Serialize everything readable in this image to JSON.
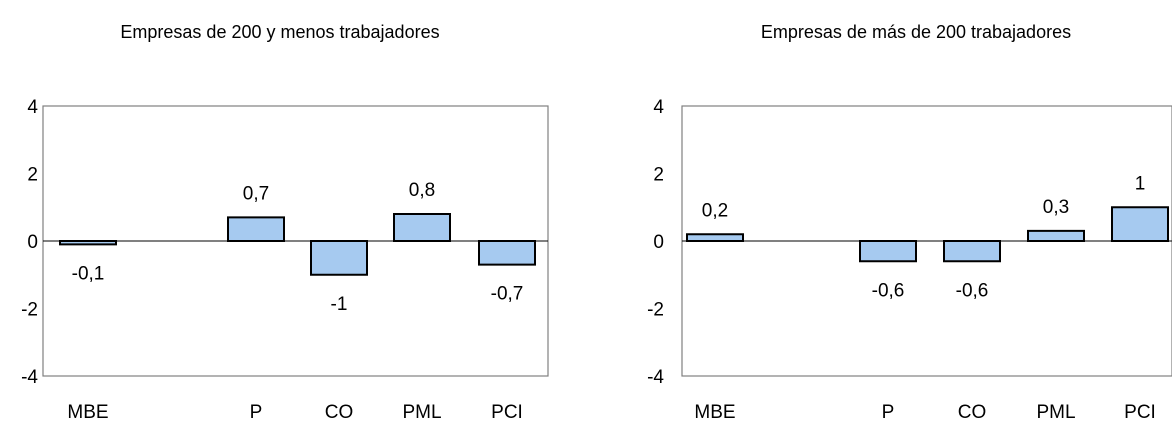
{
  "chart_data": [
    {
      "type": "bar",
      "title": "Empresas de 200 y menos trabajadores",
      "categories": [
        "MBE",
        "",
        "P",
        "CO",
        "PML",
        "PCI"
      ],
      "values": [
        -0.1,
        null,
        0.7,
        -1,
        0.8,
        -0.7
      ],
      "value_labels": [
        "-0,1",
        "",
        "0,7",
        "-1",
        "0,8",
        "-0,7"
      ],
      "ylim": [
        -4,
        4
      ],
      "yticks": [
        4,
        2,
        0,
        -2,
        -4
      ],
      "ytick_labels": [
        "4",
        "2",
        "0",
        "-2",
        "-4"
      ],
      "grid": false,
      "bar_color": "#a6caf0"
    },
    {
      "type": "bar",
      "title": "Empresas de más de 200 trabajadores",
      "categories": [
        "MBE",
        "",
        "P",
        "CO",
        "PML",
        "PCI"
      ],
      "values": [
        0.2,
        null,
        -0.6,
        -0.6,
        0.3,
        1
      ],
      "value_labels": [
        "0,2",
        "",
        "-0,6",
        "-0,6",
        "0,3",
        "1"
      ],
      "ylim": [
        -4,
        4
      ],
      "yticks": [
        4,
        2,
        0,
        -2,
        -4
      ],
      "ytick_labels": [
        "4",
        "2",
        "0",
        "-2",
        "-4"
      ],
      "grid": false,
      "bar_color": "#a6caf0"
    }
  ]
}
